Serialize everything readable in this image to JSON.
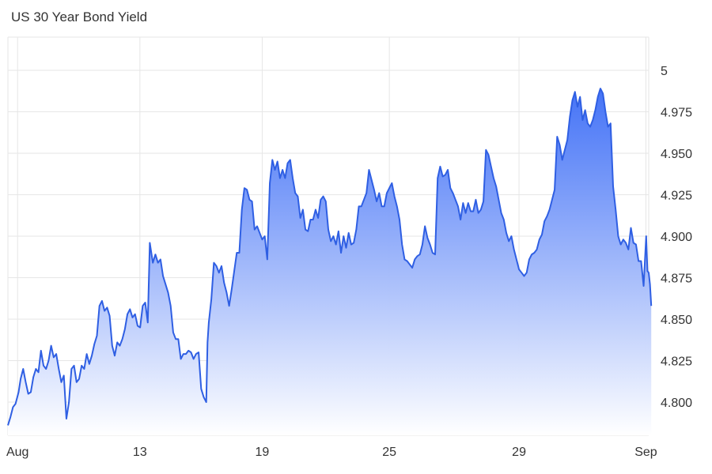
{
  "chart_data": {
    "type": "area",
    "title": "US 30 Year Bond Yield",
    "xlabel": "",
    "ylabel": "",
    "ylim": [
      4.78,
      5.02
    ],
    "grid": true,
    "legend": "none",
    "line_color": "#2f5fe3",
    "fill_top_color": "#3b6cf6",
    "fill_bottom_color": "#ffffff",
    "grid_color": "#e6e6e6",
    "x_ticks": [
      {
        "label": "Aug",
        "x": 0.38
      },
      {
        "label": "13",
        "x": 5.19
      },
      {
        "label": "19",
        "x": 10.0
      },
      {
        "label": "25",
        "x": 15.0
      },
      {
        "label": "29",
        "x": 20.1
      },
      {
        "label": "Sep",
        "x": 25.09
      }
    ],
    "y_ticks": [
      {
        "label": "4.800",
        "value": 4.8
      },
      {
        "label": "4.825",
        "value": 4.825
      },
      {
        "label": "4.850",
        "value": 4.85
      },
      {
        "label": "4.875",
        "value": 4.875
      },
      {
        "label": "4.900",
        "value": 4.9
      },
      {
        "label": "4.925",
        "value": 4.925
      },
      {
        "label": "4.950",
        "value": 4.95
      },
      {
        "label": "4.975",
        "value": 4.975
      },
      {
        "label": "5",
        "value": 5.0
      }
    ],
    "xlim": [
      0,
      25.2
    ],
    "series": [
      {
        "name": "",
        "points": [
          [
            0.0,
            4.786
          ],
          [
            0.1,
            4.791
          ],
          [
            0.2,
            4.797
          ],
          [
            0.3,
            4.799
          ],
          [
            0.42,
            4.806
          ],
          [
            0.5,
            4.814
          ],
          [
            0.6,
            4.82
          ],
          [
            0.7,
            4.812
          ],
          [
            0.8,
            4.805
          ],
          [
            0.9,
            4.806
          ],
          [
            1.0,
            4.815
          ],
          [
            1.1,
            4.82
          ],
          [
            1.2,
            4.818
          ],
          [
            1.3,
            4.831
          ],
          [
            1.4,
            4.822
          ],
          [
            1.5,
            4.82
          ],
          [
            1.6,
            4.825
          ],
          [
            1.7,
            4.834
          ],
          [
            1.8,
            4.827
          ],
          [
            1.9,
            4.829
          ],
          [
            2.0,
            4.82
          ],
          [
            2.1,
            4.812
          ],
          [
            2.2,
            4.816
          ],
          [
            2.3,
            4.79
          ],
          [
            2.4,
            4.8
          ],
          [
            2.5,
            4.82
          ],
          [
            2.6,
            4.822
          ],
          [
            2.7,
            4.812
          ],
          [
            2.8,
            4.814
          ],
          [
            2.9,
            4.822
          ],
          [
            3.0,
            4.82
          ],
          [
            3.1,
            4.829
          ],
          [
            3.2,
            4.823
          ],
          [
            3.3,
            4.828
          ],
          [
            3.4,
            4.835
          ],
          [
            3.5,
            4.84
          ],
          [
            3.6,
            4.858
          ],
          [
            3.7,
            4.861
          ],
          [
            3.8,
            4.855
          ],
          [
            3.9,
            4.857
          ],
          [
            4.0,
            4.852
          ],
          [
            4.1,
            4.834
          ],
          [
            4.2,
            4.828
          ],
          [
            4.3,
            4.836
          ],
          [
            4.4,
            4.834
          ],
          [
            4.5,
            4.838
          ],
          [
            4.6,
            4.844
          ],
          [
            4.7,
            4.853
          ],
          [
            4.8,
            4.856
          ],
          [
            4.9,
            4.851
          ],
          [
            5.0,
            4.853
          ],
          [
            5.1,
            4.846
          ],
          [
            5.2,
            4.845
          ],
          [
            5.3,
            4.858
          ],
          [
            5.4,
            4.86
          ],
          [
            5.5,
            4.848
          ],
          [
            5.58,
            4.896
          ],
          [
            5.7,
            4.884
          ],
          [
            5.8,
            4.889
          ],
          [
            5.9,
            4.884
          ],
          [
            6.0,
            4.886
          ],
          [
            6.1,
            4.876
          ],
          [
            6.2,
            4.871
          ],
          [
            6.3,
            4.866
          ],
          [
            6.4,
            4.858
          ],
          [
            6.5,
            4.842
          ],
          [
            6.6,
            4.838
          ],
          [
            6.7,
            4.838
          ],
          [
            6.8,
            4.826
          ],
          [
            6.9,
            4.829
          ],
          [
            7.0,
            4.829
          ],
          [
            7.1,
            4.831
          ],
          [
            7.2,
            4.83
          ],
          [
            7.3,
            4.826
          ],
          [
            7.4,
            4.829
          ],
          [
            7.5,
            4.83
          ],
          [
            7.6,
            4.808
          ],
          [
            7.7,
            4.803
          ],
          [
            7.8,
            4.8
          ],
          [
            7.85,
            4.836
          ],
          [
            7.9,
            4.848
          ],
          [
            8.0,
            4.862
          ],
          [
            8.1,
            4.884
          ],
          [
            8.2,
            4.882
          ],
          [
            8.3,
            4.878
          ],
          [
            8.4,
            4.882
          ],
          [
            8.5,
            4.872
          ],
          [
            8.6,
            4.866
          ],
          [
            8.7,
            4.858
          ],
          [
            8.8,
            4.868
          ],
          [
            8.9,
            4.879
          ],
          [
            9.0,
            4.89
          ],
          [
            9.1,
            4.89
          ],
          [
            9.2,
            4.916
          ],
          [
            9.3,
            4.929
          ],
          [
            9.4,
            4.928
          ],
          [
            9.5,
            4.922
          ],
          [
            9.6,
            4.921
          ],
          [
            9.7,
            4.904
          ],
          [
            9.8,
            4.906
          ],
          [
            9.9,
            4.902
          ],
          [
            10.0,
            4.898
          ],
          [
            10.1,
            4.9
          ],
          [
            10.2,
            4.886
          ],
          [
            10.3,
            4.932
          ],
          [
            10.4,
            4.946
          ],
          [
            10.5,
            4.94
          ],
          [
            10.6,
            4.945
          ],
          [
            10.7,
            4.935
          ],
          [
            10.8,
            4.94
          ],
          [
            10.9,
            4.935
          ],
          [
            11.0,
            4.944
          ],
          [
            11.1,
            4.946
          ],
          [
            11.2,
            4.935
          ],
          [
            11.3,
            4.926
          ],
          [
            11.4,
            4.924
          ],
          [
            11.5,
            4.911
          ],
          [
            11.6,
            4.916
          ],
          [
            11.7,
            4.904
          ],
          [
            11.8,
            4.903
          ],
          [
            11.9,
            4.91
          ],
          [
            12.0,
            4.91
          ],
          [
            12.1,
            4.916
          ],
          [
            12.2,
            4.911
          ],
          [
            12.3,
            4.922
          ],
          [
            12.4,
            4.924
          ],
          [
            12.5,
            4.921
          ],
          [
            12.6,
            4.904
          ],
          [
            12.7,
            4.897
          ],
          [
            12.8,
            4.9
          ],
          [
            12.9,
            4.895
          ],
          [
            13.0,
            4.903
          ],
          [
            13.1,
            4.89
          ],
          [
            13.2,
            4.9
          ],
          [
            13.3,
            4.893
          ],
          [
            13.4,
            4.902
          ],
          [
            13.5,
            4.895
          ],
          [
            13.6,
            4.896
          ],
          [
            13.7,
            4.904
          ],
          [
            13.8,
            4.918
          ],
          [
            13.9,
            4.918
          ],
          [
            14.0,
            4.922
          ],
          [
            14.1,
            4.926
          ],
          [
            14.2,
            4.94
          ],
          [
            14.3,
            4.934
          ],
          [
            14.4,
            4.928
          ],
          [
            14.5,
            4.921
          ],
          [
            14.6,
            4.926
          ],
          [
            14.7,
            4.918
          ],
          [
            14.8,
            4.918
          ],
          [
            14.9,
            4.926
          ],
          [
            15.0,
            4.929
          ],
          [
            15.1,
            4.932
          ],
          [
            15.2,
            4.924
          ],
          [
            15.3,
            4.918
          ],
          [
            15.4,
            4.91
          ],
          [
            15.5,
            4.895
          ],
          [
            15.6,
            4.886
          ],
          [
            15.7,
            4.885
          ],
          [
            15.8,
            4.883
          ],
          [
            15.9,
            4.881
          ],
          [
            16.0,
            4.886
          ],
          [
            16.1,
            4.888
          ],
          [
            16.2,
            4.889
          ],
          [
            16.3,
            4.895
          ],
          [
            16.4,
            4.906
          ],
          [
            16.5,
            4.899
          ],
          [
            16.6,
            4.895
          ],
          [
            16.7,
            4.89
          ],
          [
            16.8,
            4.889
          ],
          [
            16.9,
            4.935
          ],
          [
            17.0,
            4.942
          ],
          [
            17.1,
            4.936
          ],
          [
            17.2,
            4.937
          ],
          [
            17.3,
            4.94
          ],
          [
            17.4,
            4.929
          ],
          [
            17.5,
            4.926
          ],
          [
            17.6,
            4.922
          ],
          [
            17.7,
            4.918
          ],
          [
            17.8,
            4.91
          ],
          [
            17.9,
            4.92
          ],
          [
            18.0,
            4.914
          ],
          [
            18.1,
            4.92
          ],
          [
            18.2,
            4.915
          ],
          [
            18.3,
            4.915
          ],
          [
            18.4,
            4.922
          ],
          [
            18.5,
            4.914
          ],
          [
            18.6,
            4.916
          ],
          [
            18.7,
            4.921
          ],
          [
            18.8,
            4.952
          ],
          [
            18.9,
            4.949
          ],
          [
            19.0,
            4.942
          ],
          [
            19.1,
            4.935
          ],
          [
            19.2,
            4.93
          ],
          [
            19.3,
            4.922
          ],
          [
            19.4,
            4.914
          ],
          [
            19.5,
            4.91
          ],
          [
            19.6,
            4.902
          ],
          [
            19.7,
            4.897
          ],
          [
            19.8,
            4.9
          ],
          [
            19.9,
            4.892
          ],
          [
            20.0,
            4.886
          ],
          [
            20.1,
            4.88
          ],
          [
            20.2,
            4.878
          ],
          [
            20.3,
            4.876
          ],
          [
            20.4,
            4.878
          ],
          [
            20.5,
            4.886
          ],
          [
            20.6,
            4.889
          ],
          [
            20.7,
            4.89
          ],
          [
            20.8,
            4.892
          ],
          [
            20.9,
            4.898
          ],
          [
            21.0,
            4.901
          ],
          [
            21.1,
            4.909
          ],
          [
            21.2,
            4.912
          ],
          [
            21.3,
            4.916
          ],
          [
            21.4,
            4.922
          ],
          [
            21.5,
            4.928
          ],
          [
            21.6,
            4.96
          ],
          [
            21.7,
            4.955
          ],
          [
            21.8,
            4.946
          ],
          [
            21.9,
            4.952
          ],
          [
            22.0,
            4.958
          ],
          [
            22.1,
            4.972
          ],
          [
            22.2,
            4.982
          ],
          [
            22.3,
            4.987
          ],
          [
            22.4,
            4.978
          ],
          [
            22.5,
            4.984
          ],
          [
            22.6,
            4.97
          ],
          [
            22.7,
            4.976
          ],
          [
            22.8,
            4.968
          ],
          [
            22.9,
            4.966
          ],
          [
            23.0,
            4.97
          ],
          [
            23.1,
            4.976
          ],
          [
            23.2,
            4.984
          ],
          [
            23.3,
            4.989
          ],
          [
            23.4,
            4.986
          ],
          [
            23.5,
            4.975
          ],
          [
            23.6,
            4.966
          ],
          [
            23.7,
            4.968
          ],
          [
            23.8,
            4.93
          ],
          [
            23.9,
            4.916
          ],
          [
            24.0,
            4.9
          ],
          [
            24.1,
            4.895
          ],
          [
            24.2,
            4.898
          ],
          [
            24.3,
            4.896
          ],
          [
            24.4,
            4.892
          ],
          [
            24.5,
            4.905
          ],
          [
            24.6,
            4.896
          ],
          [
            24.7,
            4.895
          ],
          [
            24.8,
            4.885
          ],
          [
            24.9,
            4.885
          ],
          [
            25.0,
            4.87
          ],
          [
            25.1,
            4.9
          ],
          [
            25.15,
            4.879
          ],
          [
            25.2,
            4.878
          ],
          [
            25.25,
            4.871
          ],
          [
            25.3,
            4.858
          ]
        ]
      }
    ]
  }
}
